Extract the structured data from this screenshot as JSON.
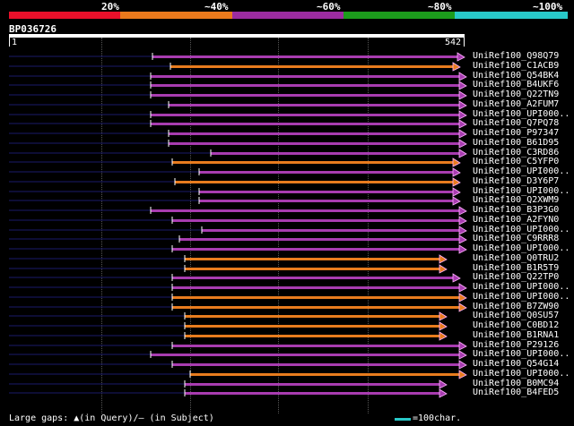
{
  "legend": {
    "labels": [
      "20%",
      "~40%",
      "~60%",
      "~80%",
      "~100%"
    ],
    "colors": [
      "#e8102a",
      "#ec7a1c",
      "#9c2ca0",
      "#1c9c1c",
      "#28c8c8"
    ]
  },
  "query": {
    "title": "BP036726",
    "start": "1",
    "end": "542"
  },
  "hits": [
    {
      "name": "UniRef100_Q98Q79",
      "color": "purple"
    },
    {
      "name": "UniRef100_C1ACB9",
      "color": "orange"
    },
    {
      "name": "UniRef100_Q54BK4",
      "color": "purple"
    },
    {
      "name": "UniRef100_B4UKF6",
      "color": "purple"
    },
    {
      "name": "UniRef100_Q22TN9",
      "color": "purple"
    },
    {
      "name": "UniRef100_A2FUM7",
      "color": "purple"
    },
    {
      "name": "UniRef100_UPI000..",
      "color": "purple"
    },
    {
      "name": "UniRef100_Q7PQ78",
      "color": "purple"
    },
    {
      "name": "UniRef100_P97347",
      "color": "purple"
    },
    {
      "name": "UniRef100_B61D95",
      "color": "purple"
    },
    {
      "name": "UniRef100_C3RD86",
      "color": "purple"
    },
    {
      "name": "UniRef100_C5YFP0",
      "color": "orange"
    },
    {
      "name": "UniRef100_UPI000..",
      "color": "purple"
    },
    {
      "name": "UniRef100_D3Y6P7",
      "color": "orange"
    },
    {
      "name": "UniRef100_UPI000..",
      "color": "purple"
    },
    {
      "name": "UniRef100_Q2XWM9",
      "color": "purple"
    },
    {
      "name": "UniRef100_B3P3G0",
      "color": "purple"
    },
    {
      "name": "UniRef100_A2FYN0",
      "color": "purple"
    },
    {
      "name": "UniRef100_UPI000..",
      "color": "purple"
    },
    {
      "name": "UniRef100_C9RRR8",
      "color": "purple"
    },
    {
      "name": "UniRef100_UPI000..",
      "color": "purple"
    },
    {
      "name": "UniRef100_Q0TRU2",
      "color": "orange"
    },
    {
      "name": "UniRef100_B1R5T9",
      "color": "orange"
    },
    {
      "name": "UniRef100_Q22TP0",
      "color": "purple"
    },
    {
      "name": "UniRef100_UPI000..",
      "color": "purple"
    },
    {
      "name": "UniRef100_UPI000..",
      "color": "orange"
    },
    {
      "name": "UniRef100_B7ZW90",
      "color": "orange"
    },
    {
      "name": "UniRef100_Q0SU57",
      "color": "orange"
    },
    {
      "name": "UniRef100_C0BD12",
      "color": "orange"
    },
    {
      "name": "UniRef100_B1RNA1",
      "color": "orange"
    },
    {
      "name": "UniRef100_P29126",
      "color": "purple"
    },
    {
      "name": "UniRef100_UPI000..",
      "color": "purple"
    },
    {
      "name": "UniRef100_Q54G14",
      "color": "purple"
    },
    {
      "name": "UniRef100_UPI000..",
      "color": "orange"
    },
    {
      "name": "UniRef100_B0MC94",
      "color": "purple"
    },
    {
      "name": "UniRef100_B4FED5",
      "color": "purple"
    }
  ],
  "footer": {
    "gaps_text": "Large gaps: ▲(in Query)/— (in Subject)",
    "scale_text": "=100char."
  }
}
